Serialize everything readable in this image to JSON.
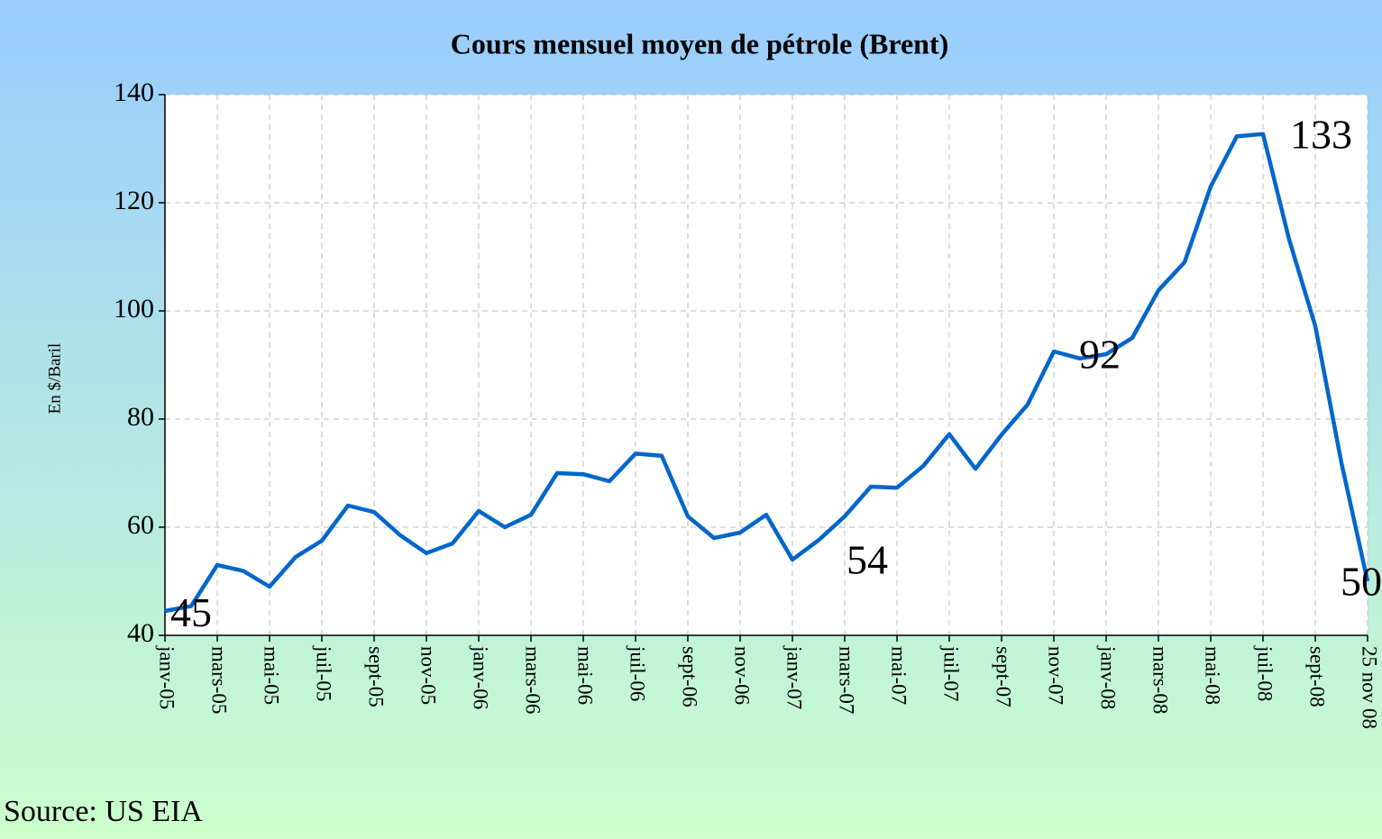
{
  "chart_data": {
    "type": "line",
    "title": "Cours mensuel moyen de pétrole (Brent)",
    "y_label": "En $/Baril",
    "source": "Source: US EIA",
    "categories": [
      "janv-05",
      null,
      "mars-05",
      null,
      "mai-05",
      null,
      "juil-05",
      null,
      "sept-05",
      null,
      "nov-05",
      null,
      "janv-06",
      null,
      "mars-06",
      null,
      "mai-06",
      null,
      "juil-06",
      null,
      "sept-06",
      null,
      "nov-06",
      null,
      "janv-07",
      null,
      "mars-07",
      null,
      "mai-07",
      null,
      "juil-07",
      null,
      "sept-07",
      null,
      "nov-07",
      null,
      "janv-08",
      null,
      "mars-08",
      null,
      "mai-08",
      null,
      "juil-08",
      null,
      "sept-08",
      null,
      "25 nov 08"
    ],
    "series": [
      {
        "name": "Brent",
        "color": "#0066cc",
        "values": [
          44.5,
          45.4,
          53,
          51.9,
          49,
          54.5,
          57.5,
          64,
          62.8,
          58.5,
          55.2,
          57,
          63,
          60,
          62.3,
          70,
          69.8,
          68.5,
          73.6,
          73.2,
          62,
          58,
          59,
          62.3,
          54,
          57.6,
          62,
          67.5,
          67.3,
          71.3,
          77.2,
          70.8,
          77.1,
          82.7,
          92.5,
          91.2,
          92,
          95,
          103.8,
          109,
          123,
          132.3,
          132.7,
          113.2,
          97.2,
          71.9,
          50
        ],
        "value_labels": [
          null,
          "45",
          null,
          null,
          null,
          null,
          null,
          null,
          null,
          null,
          null,
          null,
          null,
          null,
          null,
          null,
          null,
          null,
          null,
          null,
          null,
          null,
          null,
          null,
          "54",
          null,
          null,
          null,
          null,
          null,
          null,
          null,
          null,
          null,
          null,
          null,
          "92",
          null,
          null,
          null,
          null,
          null,
          "133",
          null,
          null,
          null,
          "50"
        ]
      }
    ],
    "ylim": [
      40,
      140
    ],
    "yticks": [
      40,
      60,
      80,
      100,
      120,
      140
    ],
    "grid": true
  }
}
